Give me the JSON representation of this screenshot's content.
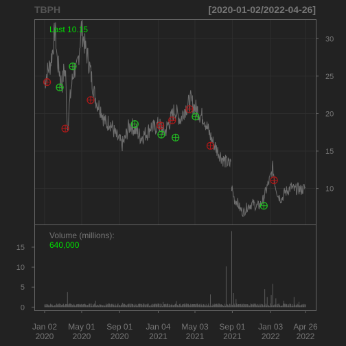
{
  "header": {
    "title": "TBPH",
    "range": "[2020-01-02/2022-04-26]"
  },
  "colors": {
    "background": "#222222",
    "panel": "#222222",
    "border": "#666666",
    "price_line": "#6e6e6e",
    "volume_bar": "#5a5a5a",
    "grid": "#2e2e2e",
    "text": "#777777",
    "title": "#555555",
    "last_label": "#00e000",
    "buy_marker": "#22c022",
    "sell_marker": "#b01818"
  },
  "chart_data": [
    {
      "type": "line",
      "title": "",
      "last_label": "Last 10.15",
      "x_ticks": [
        {
          "date": "2020-01-02",
          "line1": "Jan 02",
          "line2": "2020"
        },
        {
          "date": "2020-05-01",
          "line1": "May 01",
          "line2": "2020"
        },
        {
          "date": "2020-09-01",
          "line1": "Sep 01",
          "line2": "2020"
        },
        {
          "date": "2021-01-04",
          "line1": "Jan 04",
          "line2": "2021"
        },
        {
          "date": "2021-05-03",
          "line1": "May 03",
          "line2": "2021"
        },
        {
          "date": "2021-09-01",
          "line1": "Sep 01",
          "line2": "2021"
        },
        {
          "date": "2022-01-03",
          "line1": "Jan 03",
          "line2": "2022"
        },
        {
          "date": "2022-04-26",
          "line1": "Apr 26",
          "line2": "2022"
        }
      ],
      "x_range": [
        "2020-01-02",
        "2022-04-26"
      ],
      "y_ticks": [
        10,
        15,
        20,
        25,
        30
      ],
      "ylim": [
        5.2,
        32.5
      ],
      "grid": true,
      "series": [
        {
          "points": [
            [
              "2020-01-02",
              24.0
            ],
            [
              "2020-01-10",
              25.5
            ],
            [
              "2020-01-20",
              26.5
            ],
            [
              "2020-01-28",
              28.5
            ],
            [
              "2020-02-05",
              31.5
            ],
            [
              "2020-02-12",
              27.0
            ],
            [
              "2020-02-20",
              25.5
            ],
            [
              "2020-02-27",
              23.5
            ],
            [
              "2020-03-05",
              26.0
            ],
            [
              "2020-03-10",
              25.0
            ],
            [
              "2020-03-16",
              18.0
            ],
            [
              "2020-03-22",
              21.0
            ],
            [
              "2020-03-30",
              24.0
            ],
            [
              "2020-04-07",
              26.0
            ],
            [
              "2020-04-14",
              25.5
            ],
            [
              "2020-04-22",
              28.0
            ],
            [
              "2020-04-30",
              31.5
            ],
            [
              "2020-05-07",
              30.0
            ],
            [
              "2020-05-14",
              28.5
            ],
            [
              "2020-05-21",
              27.5
            ],
            [
              "2020-05-28",
              26.0
            ],
            [
              "2020-06-05",
              24.0
            ],
            [
              "2020-06-12",
              22.5
            ],
            [
              "2020-06-19",
              21.5
            ],
            [
              "2020-06-26",
              21.0
            ],
            [
              "2020-07-03",
              20.5
            ],
            [
              "2020-07-10",
              19.5
            ],
            [
              "2020-07-20",
              18.5
            ],
            [
              "2020-07-30",
              19.0
            ],
            [
              "2020-08-10",
              18.0
            ],
            [
              "2020-08-20",
              17.0
            ],
            [
              "2020-08-30",
              16.5
            ],
            [
              "2020-09-08",
              15.8
            ],
            [
              "2020-09-18",
              16.5
            ],
            [
              "2020-09-28",
              18.0
            ],
            [
              "2020-10-08",
              18.5
            ],
            [
              "2020-10-18",
              18.0
            ],
            [
              "2020-10-28",
              17.5
            ],
            [
              "2020-11-09",
              16.8
            ],
            [
              "2020-11-20",
              17.2
            ],
            [
              "2020-12-01",
              17.5
            ],
            [
              "2020-12-11",
              18.3
            ],
            [
              "2020-12-21",
              18.0
            ],
            [
              "2021-01-04",
              18.5
            ],
            [
              "2021-01-14",
              18.2
            ],
            [
              "2021-01-25",
              17.5
            ],
            [
              "2021-02-05",
              18.5
            ],
            [
              "2021-02-16",
              19.5
            ],
            [
              "2021-02-26",
              20.5
            ],
            [
              "2021-03-08",
              19.8
            ],
            [
              "2021-03-18",
              19.2
            ],
            [
              "2021-03-29",
              20.5
            ],
            [
              "2021-04-08",
              21.0
            ],
            [
              "2021-04-19",
              21.8
            ],
            [
              "2021-04-29",
              21.0
            ],
            [
              "2021-05-10",
              20.5
            ],
            [
              "2021-05-20",
              19.8
            ],
            [
              "2021-06-01",
              19.5
            ],
            [
              "2021-06-11",
              18.2
            ],
            [
              "2021-06-22",
              17.0
            ],
            [
              "2021-07-02",
              16.0
            ],
            [
              "2021-07-13",
              15.2
            ],
            [
              "2021-07-23",
              14.5
            ],
            [
              "2021-08-03",
              13.8
            ],
            [
              "2021-08-13",
              13.5
            ],
            [
              "2021-08-24",
              13.2
            ],
            [
              "2021-08-27",
              13.6
            ],
            [
              "2021-08-30",
              10.2
            ],
            [
              "2021-09-08",
              8.5
            ],
            [
              "2021-09-17",
              8.2
            ],
            [
              "2021-09-27",
              7.2
            ],
            [
              "2021-10-07",
              6.8
            ],
            [
              "2021-10-18",
              7.5
            ],
            [
              "2021-10-28",
              7.8
            ],
            [
              "2021-11-08",
              8.0
            ],
            [
              "2021-11-18",
              7.6
            ],
            [
              "2021-11-30",
              7.8
            ],
            [
              "2021-12-10",
              8.5
            ],
            [
              "2021-12-21",
              10.0
            ],
            [
              "2022-01-03",
              11.5
            ],
            [
              "2022-01-10",
              12.8
            ],
            [
              "2022-01-18",
              10.5
            ],
            [
              "2022-01-28",
              9.0
            ],
            [
              "2022-02-08",
              8.6
            ],
            [
              "2022-02-18",
              9.5
            ],
            [
              "2022-03-01",
              9.8
            ],
            [
              "2022-03-11",
              10.2
            ],
            [
              "2022-03-22",
              9.8
            ],
            [
              "2022-04-01",
              10.0
            ],
            [
              "2022-04-12",
              9.8
            ],
            [
              "2022-04-26",
              10.15
            ]
          ]
        }
      ],
      "markers": [
        {
          "date": "2020-01-10",
          "value": 24.2,
          "kind": "sell"
        },
        {
          "date": "2020-02-20",
          "value": 23.5,
          "kind": "buy"
        },
        {
          "date": "2020-03-09",
          "value": 18.0,
          "kind": "sell"
        },
        {
          "date": "2020-04-02",
          "value": 26.3,
          "kind": "buy"
        },
        {
          "date": "2020-05-30",
          "value": 21.8,
          "kind": "sell"
        },
        {
          "date": "2020-10-20",
          "value": 18.6,
          "kind": "buy"
        },
        {
          "date": "2021-01-11",
          "value": 18.4,
          "kind": "sell"
        },
        {
          "date": "2021-01-14",
          "value": 17.2,
          "kind": "buy"
        },
        {
          "date": "2021-02-18",
          "value": 19.1,
          "kind": "sell"
        },
        {
          "date": "2021-03-01",
          "value": 16.8,
          "kind": "buy"
        },
        {
          "date": "2021-04-15",
          "value": 20.6,
          "kind": "sell"
        },
        {
          "date": "2021-05-05",
          "value": 19.6,
          "kind": "buy"
        },
        {
          "date": "2021-06-22",
          "value": 15.7,
          "kind": "sell"
        },
        {
          "date": "2021-12-12",
          "value": 7.7,
          "kind": "buy"
        },
        {
          "date": "2022-01-14",
          "value": 11.1,
          "kind": "sell"
        }
      ]
    },
    {
      "type": "bar",
      "label": "Volume (millions):",
      "last_value": "640,000",
      "y_ticks": [
        0,
        5,
        10,
        15
      ],
      "ylim": [
        -0.8,
        20.5
      ],
      "grid": false,
      "baseline": 0.45,
      "spikes": [
        [
          "2020-03-16",
          3.8
        ],
        [
          "2020-03-20",
          1.8
        ],
        [
          "2020-05-01",
          1.4
        ],
        [
          "2020-06-15",
          1.6
        ],
        [
          "2020-09-10",
          1.1
        ],
        [
          "2021-01-20",
          1.3
        ],
        [
          "2021-03-04",
          1.5
        ],
        [
          "2021-06-22",
          3.2
        ],
        [
          "2021-08-12",
          10.2
        ],
        [
          "2021-08-20",
          4.5
        ],
        [
          "2021-08-30",
          19.0
        ],
        [
          "2021-09-05",
          3.5
        ],
        [
          "2021-09-13",
          2.0
        ],
        [
          "2021-12-15",
          4.5
        ],
        [
          "2021-12-23",
          2.5
        ],
        [
          "2022-01-05",
          3.0
        ],
        [
          "2022-01-10",
          5.8
        ],
        [
          "2022-01-14",
          6.0
        ],
        [
          "2022-01-20",
          2.2
        ],
        [
          "2022-02-15",
          1.6
        ],
        [
          "2022-03-20",
          2.5
        ],
        [
          "2022-04-05",
          1.3
        ]
      ]
    }
  ]
}
